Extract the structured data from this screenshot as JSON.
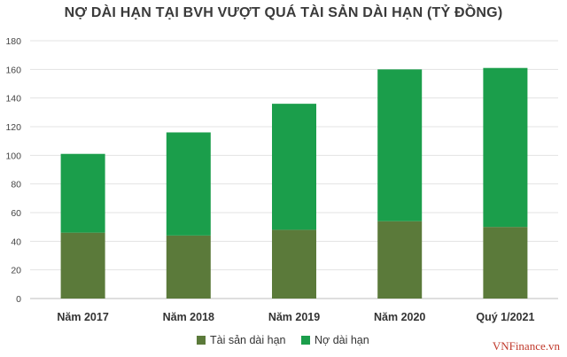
{
  "chart_data": {
    "type": "bar",
    "stacked": true,
    "title": "NỢ DÀI HẠN TẠI BVH VƯỢT QUÁ TÀI SẢN DÀI HẠN (TỶ ĐỒNG)",
    "categories": [
      "Năm 2017",
      "Năm 2018",
      "Năm 2019",
      "Năm 2020",
      "Quý 1/2021"
    ],
    "series": [
      {
        "name": "Tài sản dài hạn",
        "values": [
          46,
          44,
          48,
          54,
          50
        ],
        "color": "#5b7a3a"
      },
      {
        "name": "Nợ dài hạn",
        "values": [
          55,
          72,
          88,
          106,
          111
        ],
        "color": "#1b9e4b"
      }
    ],
    "ylim": [
      0,
      180
    ],
    "yticks": [
      "0",
      "20",
      "40",
      "60",
      "80",
      "100",
      "120",
      "140",
      "160",
      "180"
    ],
    "grid": true,
    "legend_position": "bottom"
  },
  "watermark": "VNFinance.vn"
}
